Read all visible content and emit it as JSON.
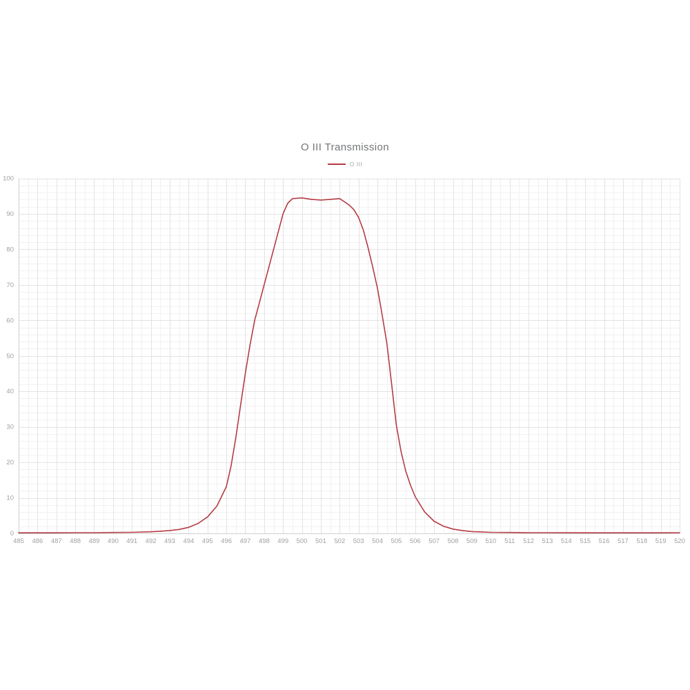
{
  "chart": {
    "title": "O III Transmission",
    "legend_label": "O III"
  },
  "chart_data": {
    "type": "line",
    "title": "O III Transmission",
    "xlabel": "",
    "ylabel": "",
    "xlim": [
      485,
      520
    ],
    "ylim": [
      0,
      100
    ],
    "x_ticks": [
      485,
      486,
      487,
      488,
      489,
      490,
      491,
      492,
      493,
      494,
      495,
      496,
      497,
      498,
      499,
      500,
      501,
      502,
      503,
      504,
      505,
      506,
      507,
      508,
      509,
      510,
      511,
      512,
      513,
      514,
      515,
      516,
      517,
      518,
      519,
      520
    ],
    "y_ticks": [
      0,
      10,
      20,
      30,
      40,
      50,
      60,
      70,
      80,
      90,
      100
    ],
    "legend_position": "top",
    "grid": {
      "major_color": "#e3e3e3",
      "minor_color": "#f1f1f1",
      "axis_color": "#cfcfcf",
      "label_color": "#a0a0a0",
      "x_minor_step": 0.5,
      "y_minor_step": 2
    },
    "series": [
      {
        "name": "O III",
        "color": "#b43b43",
        "points": [
          [
            485,
            0.15
          ],
          [
            486,
            0.15
          ],
          [
            487,
            0.15
          ],
          [
            488,
            0.2
          ],
          [
            489,
            0.2
          ],
          [
            490,
            0.25
          ],
          [
            491,
            0.3
          ],
          [
            492,
            0.45
          ],
          [
            492.5,
            0.6
          ],
          [
            493,
            0.8
          ],
          [
            493.5,
            1.1
          ],
          [
            494,
            1.7
          ],
          [
            494.5,
            2.8
          ],
          [
            495,
            4.6
          ],
          [
            495.5,
            7.7
          ],
          [
            496,
            13.2
          ],
          [
            496.25,
            19
          ],
          [
            496.5,
            27
          ],
          [
            496.75,
            36
          ],
          [
            497,
            45
          ],
          [
            497.25,
            53
          ],
          [
            497.5,
            60
          ],
          [
            498,
            70
          ],
          [
            498.5,
            80
          ],
          [
            499,
            90
          ],
          [
            499.25,
            93
          ],
          [
            499.5,
            94.3
          ],
          [
            500,
            94.5
          ],
          [
            500.5,
            94.1
          ],
          [
            501,
            93.9
          ],
          [
            501.5,
            94.1
          ],
          [
            502,
            94.3
          ],
          [
            502.5,
            92.5
          ],
          [
            502.75,
            91.2
          ],
          [
            503,
            89
          ],
          [
            503.25,
            85.5
          ],
          [
            503.5,
            80.5
          ],
          [
            503.75,
            75
          ],
          [
            504,
            69
          ],
          [
            504.25,
            61.5
          ],
          [
            504.5,
            53.5
          ],
          [
            504.75,
            42
          ],
          [
            505,
            30.5
          ],
          [
            505.25,
            23
          ],
          [
            505.5,
            17.5
          ],
          [
            505.75,
            13.5
          ],
          [
            506,
            10.3
          ],
          [
            506.5,
            6
          ],
          [
            507,
            3.4
          ],
          [
            507.5,
            2
          ],
          [
            508,
            1.2
          ],
          [
            508.5,
            0.8
          ],
          [
            509,
            0.5
          ],
          [
            509.5,
            0.4
          ],
          [
            510,
            0.3
          ],
          [
            511,
            0.25
          ],
          [
            512,
            0.2
          ],
          [
            513,
            0.2
          ],
          [
            514,
            0.18
          ],
          [
            515,
            0.15
          ],
          [
            516,
            0.15
          ],
          [
            517,
            0.15
          ],
          [
            518,
            0.15
          ],
          [
            519,
            0.15
          ],
          [
            520,
            0.2
          ]
        ]
      }
    ]
  }
}
